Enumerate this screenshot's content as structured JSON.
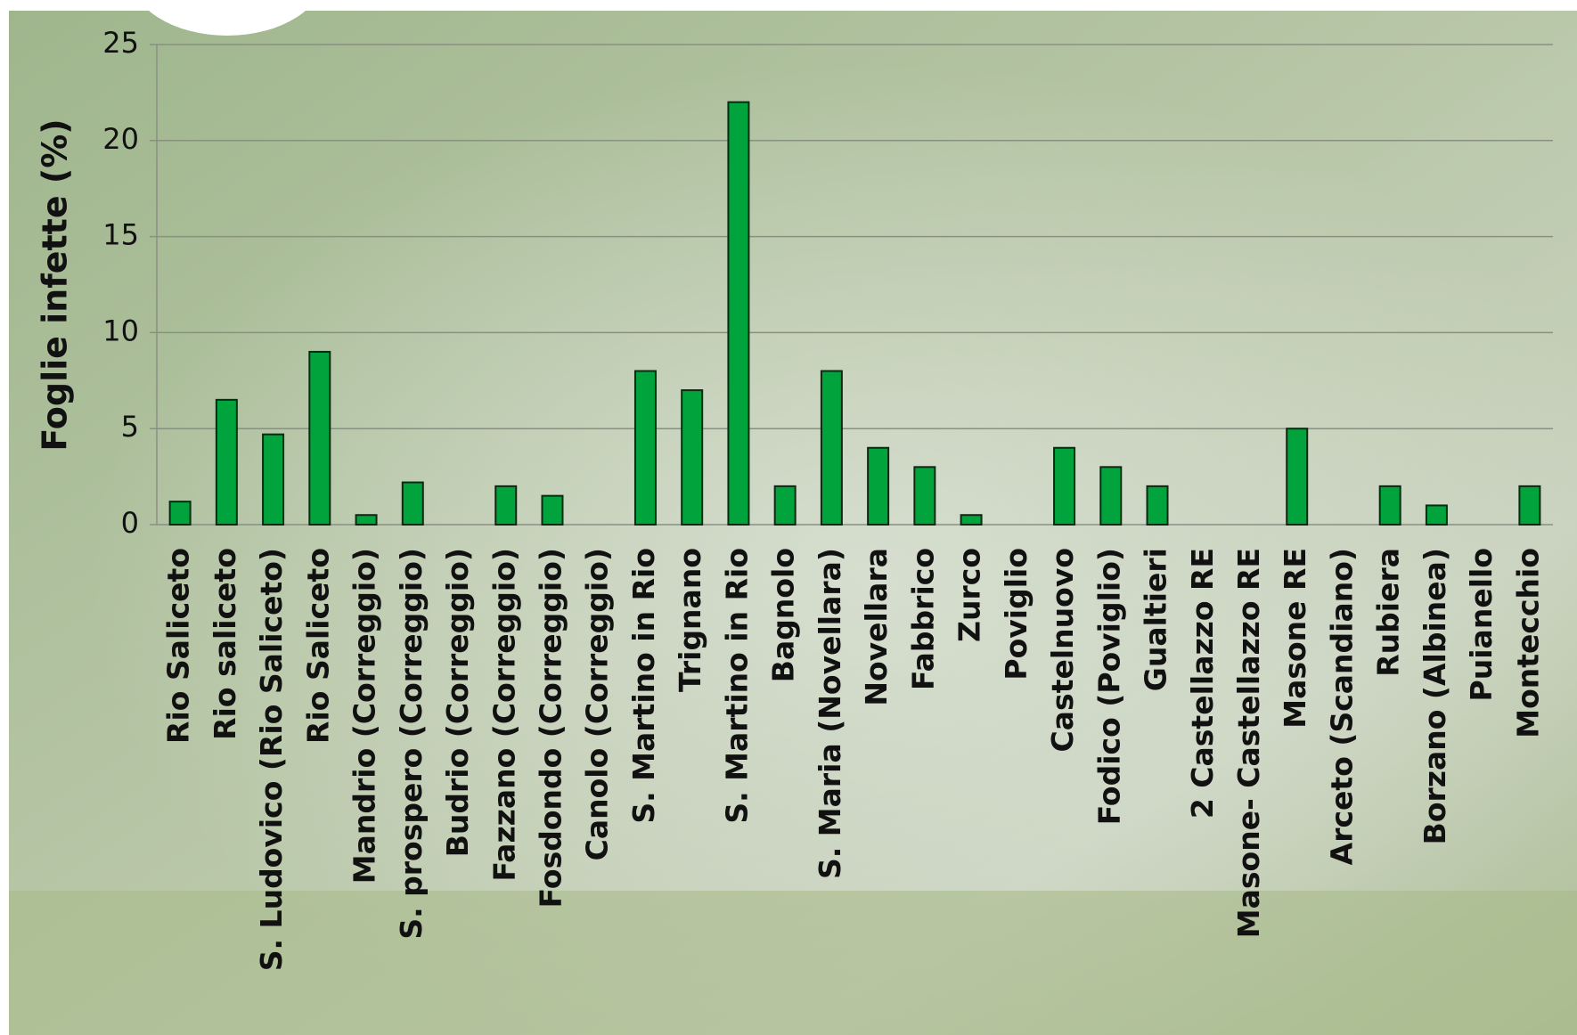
{
  "chart_data": {
    "type": "bar",
    "y_label": "Foglie infette (%)",
    "categories": [
      "Rio Saliceto",
      "Rio saliceto",
      "S. Ludovico (Rio Saliceto)",
      "Rio Saliceto",
      "Mandrio (Correggio)",
      "S. prospero  (Correggio)",
      "Budrio  (Correggio)",
      "Fazzano (Correggio)",
      "Fosdondo (Correggio)",
      "Canolo (Correggio)",
      "S. Martino in Rio",
      "Trignano",
      "S. Martino in Rio",
      "Bagnolo",
      "S. Maria (Novellara)",
      "Novellara",
      "Fabbrico",
      "Zurco",
      "Poviglio",
      "Castelnuovo",
      "Fodico (Poviglio)",
      "Gualtieri",
      "2 Castellazzo RE",
      "Masone- Castellazzo RE",
      "Masone RE",
      "Arceto (Scandiano)",
      "Rubiera",
      "Borzano (Albinea)",
      "Puianello",
      "Montecchio"
    ],
    "values": [
      1.2,
      6.5,
      4.7,
      9,
      0.5,
      2.2,
      0,
      2,
      1.5,
      0,
      8,
      7,
      22,
      2,
      8,
      4,
      3,
      0.5,
      0,
      4,
      3,
      2,
      0,
      0,
      5,
      0,
      2,
      1,
      0,
      2
    ],
    "color": "#00a33c",
    "ylim": [
      0,
      25
    ],
    "yticks": [
      0,
      5,
      10,
      15,
      20,
      25
    ],
    "grid": true
  }
}
